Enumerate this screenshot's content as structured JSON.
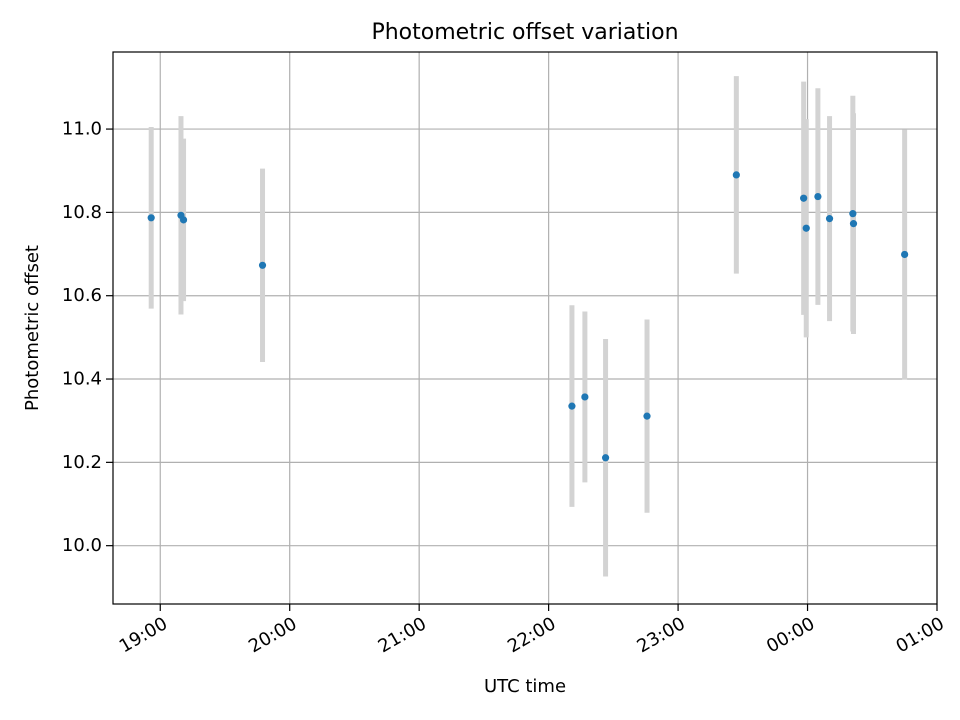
{
  "chart_data": {
    "type": "scatter",
    "title": "Photometric offset variation",
    "xlabel": "UTC time",
    "ylabel": "Photometric offset",
    "x_unit": "hours since 00:00 (negative = previous day)",
    "xlim": [
      -5.365,
      1.0
    ],
    "ylim": [
      9.86,
      11.185
    ],
    "x_ticks": [
      -5,
      -4,
      -3,
      -2,
      -1,
      0,
      1
    ],
    "x_tick_labels": [
      "19:00",
      "20:00",
      "21:00",
      "22:00",
      "23:00",
      "00:00",
      "01:00"
    ],
    "y_ticks": [
      10.0,
      10.2,
      10.4,
      10.6,
      10.8,
      11.0
    ],
    "y_tick_labels": [
      "10.0",
      "10.2",
      "10.4",
      "10.6",
      "10.8",
      "11.0"
    ],
    "grid": true,
    "marker_color": "#1f77b4",
    "errorbar_color": "#d3d3d3",
    "points": [
      {
        "x": -5.07,
        "y": 10.787,
        "yerr": 0.218
      },
      {
        "x": -4.84,
        "y": 10.793,
        "yerr": 0.238
      },
      {
        "x": -4.82,
        "y": 10.782,
        "yerr": 0.195
      },
      {
        "x": -4.21,
        "y": 10.673,
        "yerr": 0.232
      },
      {
        "x": -1.82,
        "y": 10.335,
        "yerr": 0.242
      },
      {
        "x": -1.72,
        "y": 10.357,
        "yerr": 0.205
      },
      {
        "x": -1.56,
        "y": 10.211,
        "yerr": 0.285
      },
      {
        "x": -1.24,
        "y": 10.311,
        "yerr": 0.232
      },
      {
        "x": -0.55,
        "y": 10.89,
        "yerr": 0.237
      },
      {
        "x": -0.03,
        "y": 10.834,
        "yerr": 0.28
      },
      {
        "x": -0.01,
        "y": 10.762,
        "yerr": 0.262
      },
      {
        "x": 0.08,
        "y": 10.838,
        "yerr": 0.26
      },
      {
        "x": 0.17,
        "y": 10.785,
        "yerr": 0.246
      },
      {
        "x": 0.35,
        "y": 10.797,
        "yerr": 0.283
      },
      {
        "x": 0.355,
        "y": 10.773,
        "yerr": 0.265
      },
      {
        "x": 0.75,
        "y": 10.699,
        "yerr": 0.3
      }
    ]
  }
}
